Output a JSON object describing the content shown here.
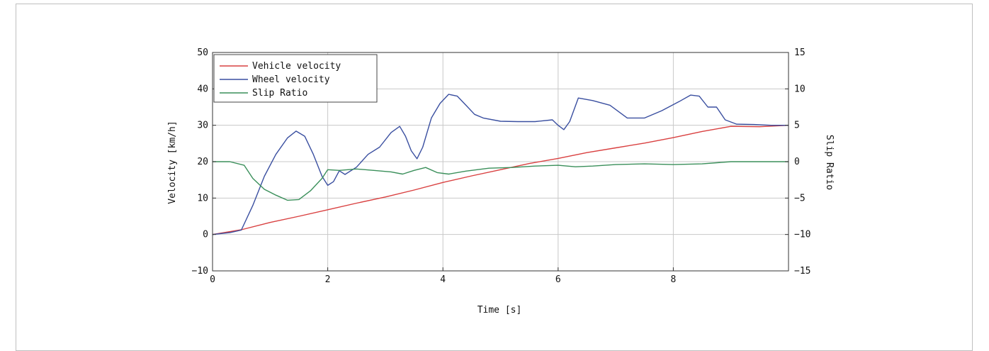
{
  "chart_data": {
    "type": "line",
    "xlabel": "Time [s]",
    "ylabel_left": "Velocity [km/h]",
    "ylabel_right": "Slip Ratio",
    "xlim": [
      0,
      10
    ],
    "ylim_left": [
      -10,
      50
    ],
    "ylim_right": [
      -15,
      15
    ],
    "x_ticks": [
      0,
      2,
      4,
      6,
      8
    ],
    "y_ticks_left": [
      -10,
      0,
      10,
      20,
      30,
      40,
      50
    ],
    "y_ticks_right": [
      -15,
      -10,
      -5,
      0,
      5,
      10,
      15
    ],
    "grid": true,
    "legend_position": "top-left",
    "series": [
      {
        "name": "Vehicle velocity",
        "axis": "left",
        "color": "#d94040",
        "x": [
          0,
          0.5,
          1,
          1.5,
          2,
          2.5,
          3,
          3.5,
          4,
          4.5,
          5,
          5.5,
          6,
          6.5,
          7,
          7.5,
          8,
          8.5,
          9,
          9.5,
          10
        ],
        "y": [
          0,
          1.3,
          3.3,
          5,
          6.8,
          8.6,
          10.3,
          12.2,
          14.3,
          16.1,
          17.8,
          19.5,
          20.9,
          22.5,
          23.8,
          25.1,
          26.6,
          28.3,
          29.7,
          29.6,
          30
        ]
      },
      {
        "name": "Wheel velocity",
        "axis": "left",
        "color": "#3a4fa0",
        "x": [
          0,
          0.3,
          0.5,
          0.7,
          0.9,
          1.1,
          1.3,
          1.45,
          1.6,
          1.75,
          1.9,
          2.0,
          2.1,
          2.2,
          2.3,
          2.5,
          2.7,
          2.9,
          3.1,
          3.25,
          3.35,
          3.45,
          3.55,
          3.65,
          3.8,
          3.95,
          4.1,
          4.25,
          4.4,
          4.55,
          4.7,
          5.0,
          5.3,
          5.6,
          5.9,
          6.0,
          6.1,
          6.2,
          6.35,
          6.6,
          6.9,
          7.2,
          7.5,
          7.8,
          8.1,
          8.3,
          8.45,
          8.6,
          8.75,
          8.9,
          9.1,
          9.4,
          9.7,
          10.0
        ],
        "y": [
          0,
          0.5,
          1.2,
          8,
          16,
          22,
          26.5,
          28.4,
          27,
          22,
          16,
          13.5,
          14.5,
          17.5,
          16.5,
          18.5,
          22,
          24,
          28,
          29.7,
          27,
          23,
          20.8,
          24,
          32,
          36,
          38.5,
          38,
          35.5,
          33,
          32,
          31.1,
          31,
          31,
          31.5,
          30,
          28.8,
          31,
          37.5,
          36.8,
          35.5,
          32,
          32,
          34,
          36.5,
          38.3,
          38,
          35,
          35,
          31.5,
          30.3,
          30.2,
          30,
          30
        ]
      },
      {
        "name": "Slip Ratio",
        "axis": "right",
        "color": "#3a8f5a",
        "x": [
          0,
          0.3,
          0.55,
          0.7,
          0.9,
          1.1,
          1.3,
          1.5,
          1.7,
          1.9,
          2.0,
          2.2,
          2.5,
          2.8,
          3.1,
          3.3,
          3.5,
          3.7,
          3.9,
          4.1,
          4.4,
          4.8,
          5.2,
          5.6,
          6.0,
          6.3,
          6.6,
          7.0,
          7.5,
          8.0,
          8.5,
          9.0,
          9.5,
          10.0
        ],
        "y": [
          0,
          0,
          -0.5,
          -2.3,
          -3.8,
          -4.6,
          -5.3,
          -5.2,
          -4,
          -2.3,
          -1.1,
          -1.2,
          -1,
          -1.2,
          -1.4,
          -1.7,
          -1.2,
          -0.8,
          -1.5,
          -1.7,
          -1.3,
          -0.9,
          -0.8,
          -0.6,
          -0.5,
          -0.7,
          -0.6,
          -0.4,
          -0.3,
          -0.4,
          -0.3,
          0,
          0,
          0
        ]
      }
    ]
  }
}
